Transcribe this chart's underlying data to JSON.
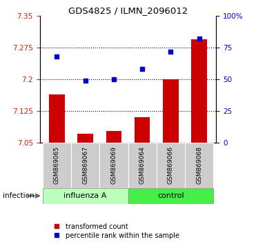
{
  "title": "GDS4825 / ILMN_2096012",
  "samples": [
    "GSM869065",
    "GSM869067",
    "GSM869069",
    "GSM869064",
    "GSM869066",
    "GSM869068"
  ],
  "red_values": [
    7.165,
    7.072,
    7.078,
    7.11,
    7.2,
    7.295
  ],
  "blue_values": [
    68,
    49,
    50,
    58,
    72,
    82
  ],
  "ylim_left": [
    7.05,
    7.35
  ],
  "ylim_right": [
    0,
    100
  ],
  "yticks_left": [
    7.05,
    7.125,
    7.2,
    7.275,
    7.35
  ],
  "yticks_right": [
    0,
    25,
    50,
    75,
    100
  ],
  "ytick_labels_left": [
    "7.05",
    "7.125",
    "7.2",
    "7.275",
    "7.35"
  ],
  "ytick_labels_right": [
    "0",
    "25",
    "50",
    "75",
    "100%"
  ],
  "bar_color": "#cc0000",
  "dot_color": "#0000cc",
  "influenza_color": "#bbffbb",
  "control_color": "#44ee44",
  "sample_box_color": "#cccccc",
  "group_label": "infection",
  "legend_red": "transformed count",
  "legend_blue": "percentile rank within the sample",
  "bar_bottom": 7.05,
  "left_tick_color": "#cc2200",
  "right_tick_color": "#0000cc"
}
